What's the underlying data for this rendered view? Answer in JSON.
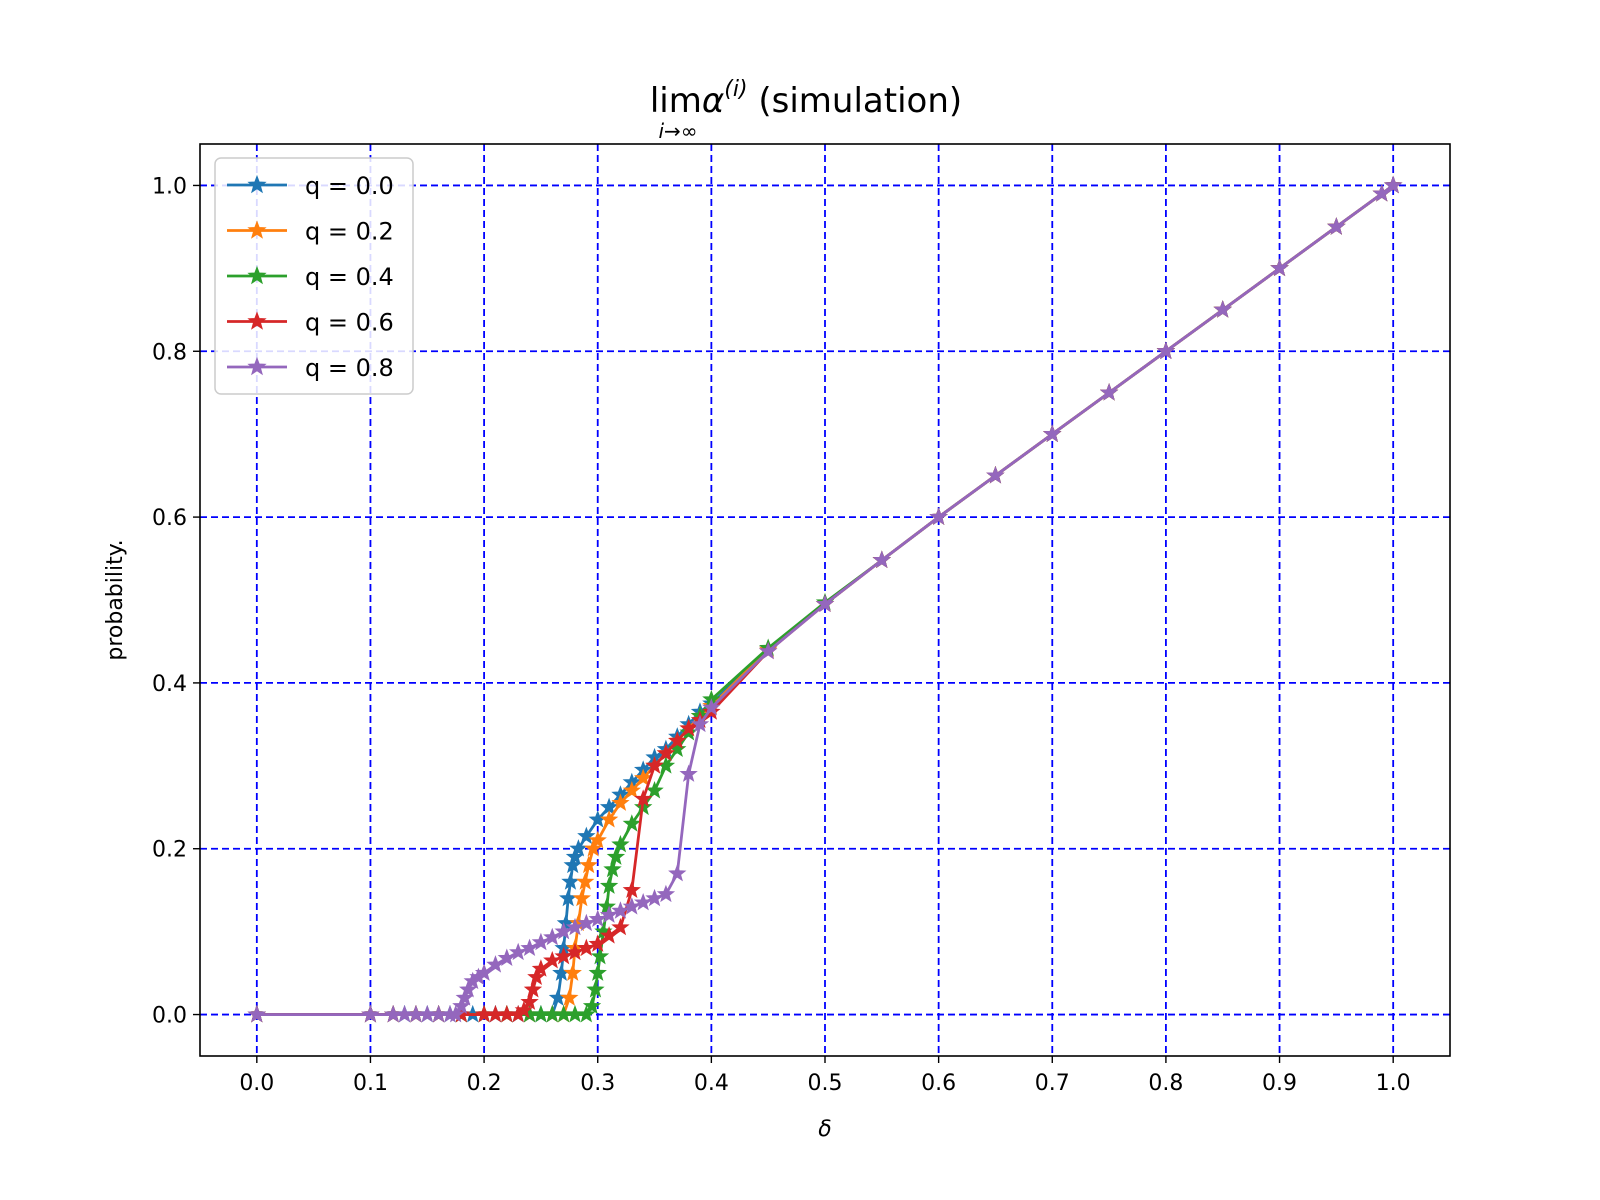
{
  "chart_data": {
    "type": "line",
    "title": {
      "prefix": "lim",
      "symbol": "α",
      "superscript": "(i)",
      "suffix": " (simulation)",
      "subscript": "i→∞"
    },
    "xlabel": "δ",
    "ylabel": "probability.",
    "xlim": [
      -0.05,
      1.05
    ],
    "ylim": [
      -0.05,
      1.05
    ],
    "xticks": [
      0.0,
      0.1,
      0.2,
      0.3,
      0.4,
      0.5,
      0.6,
      0.7,
      0.8,
      0.9,
      1.0
    ],
    "xtick_labels": [
      "0.0",
      "0.1",
      "0.2",
      "0.3",
      "0.4",
      "0.5",
      "0.6",
      "0.7",
      "0.8",
      "0.9",
      "1.0"
    ],
    "yticks": [
      0.0,
      0.2,
      0.4,
      0.6,
      0.8,
      1.0
    ],
    "ytick_labels": [
      "0.0",
      "0.2",
      "0.4",
      "0.6",
      "0.8",
      "1.0"
    ],
    "grid": true,
    "grid_color": "#0000ff",
    "legend_position": "upper-left",
    "marker": "star",
    "series": [
      {
        "name": "q = 0.0",
        "color": "#1f77b4",
        "points": [
          [
            0.0,
            0.0
          ],
          [
            0.1,
            0.0
          ],
          [
            0.12,
            0.0
          ],
          [
            0.13,
            0.0
          ],
          [
            0.14,
            0.0
          ],
          [
            0.15,
            0.0
          ],
          [
            0.16,
            0.0
          ],
          [
            0.17,
            0.0
          ],
          [
            0.18,
            0.0
          ],
          [
            0.19,
            0.0
          ],
          [
            0.2,
            0.0
          ],
          [
            0.21,
            0.0
          ],
          [
            0.22,
            0.0
          ],
          [
            0.23,
            0.0
          ],
          [
            0.24,
            0.0
          ],
          [
            0.25,
            0.0
          ],
          [
            0.26,
            0.0
          ],
          [
            0.265,
            0.02
          ],
          [
            0.268,
            0.05
          ],
          [
            0.27,
            0.08
          ],
          [
            0.272,
            0.11
          ],
          [
            0.274,
            0.14
          ],
          [
            0.276,
            0.16
          ],
          [
            0.278,
            0.18
          ],
          [
            0.28,
            0.19
          ],
          [
            0.283,
            0.2
          ],
          [
            0.29,
            0.215
          ],
          [
            0.3,
            0.235
          ],
          [
            0.31,
            0.25
          ],
          [
            0.32,
            0.265
          ],
          [
            0.33,
            0.28
          ],
          [
            0.34,
            0.295
          ],
          [
            0.35,
            0.31
          ],
          [
            0.36,
            0.32
          ],
          [
            0.37,
            0.335
          ],
          [
            0.38,
            0.35
          ],
          [
            0.39,
            0.365
          ],
          [
            0.4,
            0.375
          ],
          [
            0.45,
            0.44
          ],
          [
            0.5,
            0.495
          ],
          [
            0.55,
            0.548
          ],
          [
            0.6,
            0.6
          ],
          [
            0.65,
            0.65
          ],
          [
            0.7,
            0.7
          ],
          [
            0.75,
            0.75
          ],
          [
            0.8,
            0.8
          ],
          [
            0.85,
            0.85
          ],
          [
            0.9,
            0.9
          ],
          [
            0.95,
            0.95
          ],
          [
            0.99,
            0.99
          ],
          [
            1.0,
            1.0
          ]
        ]
      },
      {
        "name": "q = 0.2",
        "color": "#ff7f0e",
        "points": [
          [
            0.0,
            0.0
          ],
          [
            0.1,
            0.0
          ],
          [
            0.12,
            0.0
          ],
          [
            0.14,
            0.0
          ],
          [
            0.16,
            0.0
          ],
          [
            0.18,
            0.0
          ],
          [
            0.2,
            0.0
          ],
          [
            0.22,
            0.0
          ],
          [
            0.24,
            0.0
          ],
          [
            0.26,
            0.0
          ],
          [
            0.27,
            0.0
          ],
          [
            0.275,
            0.02
          ],
          [
            0.278,
            0.05
          ],
          [
            0.28,
            0.08
          ],
          [
            0.283,
            0.11
          ],
          [
            0.286,
            0.14
          ],
          [
            0.289,
            0.16
          ],
          [
            0.292,
            0.18
          ],
          [
            0.296,
            0.2
          ],
          [
            0.3,
            0.21
          ],
          [
            0.31,
            0.235
          ],
          [
            0.32,
            0.255
          ],
          [
            0.33,
            0.27
          ],
          [
            0.34,
            0.285
          ],
          [
            0.35,
            0.3
          ],
          [
            0.36,
            0.315
          ],
          [
            0.37,
            0.33
          ],
          [
            0.38,
            0.345
          ],
          [
            0.39,
            0.36
          ],
          [
            0.4,
            0.372
          ],
          [
            0.45,
            0.44
          ],
          [
            0.5,
            0.495
          ],
          [
            0.55,
            0.548
          ],
          [
            0.6,
            0.6
          ],
          [
            0.65,
            0.65
          ],
          [
            0.7,
            0.7
          ],
          [
            0.75,
            0.75
          ],
          [
            0.8,
            0.8
          ],
          [
            0.85,
            0.85
          ],
          [
            0.9,
            0.9
          ],
          [
            0.95,
            0.95
          ],
          [
            0.99,
            0.99
          ],
          [
            1.0,
            1.0
          ]
        ]
      },
      {
        "name": "q = 0.4",
        "color": "#2ca02c",
        "points": [
          [
            0.0,
            0.0
          ],
          [
            0.1,
            0.0
          ],
          [
            0.12,
            0.0
          ],
          [
            0.14,
            0.0
          ],
          [
            0.16,
            0.0
          ],
          [
            0.18,
            0.0
          ],
          [
            0.2,
            0.0
          ],
          [
            0.22,
            0.0
          ],
          [
            0.24,
            0.0
          ],
          [
            0.25,
            0.0
          ],
          [
            0.26,
            0.0
          ],
          [
            0.27,
            0.0
          ],
          [
            0.28,
            0.0
          ],
          [
            0.29,
            0.0
          ],
          [
            0.295,
            0.01
          ],
          [
            0.298,
            0.03
          ],
          [
            0.3,
            0.05
          ],
          [
            0.302,
            0.07
          ],
          [
            0.305,
            0.1
          ],
          [
            0.308,
            0.13
          ],
          [
            0.31,
            0.155
          ],
          [
            0.313,
            0.175
          ],
          [
            0.316,
            0.19
          ],
          [
            0.32,
            0.205
          ],
          [
            0.33,
            0.23
          ],
          [
            0.34,
            0.25
          ],
          [
            0.35,
            0.27
          ],
          [
            0.36,
            0.3
          ],
          [
            0.37,
            0.32
          ],
          [
            0.38,
            0.34
          ],
          [
            0.39,
            0.36
          ],
          [
            0.4,
            0.38
          ],
          [
            0.45,
            0.442
          ],
          [
            0.5,
            0.497
          ],
          [
            0.55,
            0.548
          ],
          [
            0.6,
            0.6
          ],
          [
            0.65,
            0.65
          ],
          [
            0.7,
            0.7
          ],
          [
            0.75,
            0.75
          ],
          [
            0.8,
            0.8
          ],
          [
            0.85,
            0.85
          ],
          [
            0.9,
            0.9
          ],
          [
            0.95,
            0.95
          ],
          [
            0.99,
            0.99
          ],
          [
            1.0,
            1.0
          ]
        ]
      },
      {
        "name": "q = 0.6",
        "color": "#d62728",
        "points": [
          [
            0.0,
            0.0
          ],
          [
            0.1,
            0.0
          ],
          [
            0.12,
            0.0
          ],
          [
            0.14,
            0.0
          ],
          [
            0.16,
            0.0
          ],
          [
            0.18,
            0.0
          ],
          [
            0.2,
            0.0
          ],
          [
            0.21,
            0.0
          ],
          [
            0.22,
            0.0
          ],
          [
            0.23,
            0.0
          ],
          [
            0.235,
            0.005
          ],
          [
            0.24,
            0.015
          ],
          [
            0.243,
            0.03
          ],
          [
            0.246,
            0.045
          ],
          [
            0.25,
            0.055
          ],
          [
            0.26,
            0.065
          ],
          [
            0.27,
            0.07
          ],
          [
            0.28,
            0.075
          ],
          [
            0.29,
            0.08
          ],
          [
            0.3,
            0.085
          ],
          [
            0.31,
            0.095
          ],
          [
            0.32,
            0.105
          ],
          [
            0.33,
            0.15
          ],
          [
            0.34,
            0.26
          ],
          [
            0.35,
            0.3
          ],
          [
            0.36,
            0.315
          ],
          [
            0.37,
            0.33
          ],
          [
            0.38,
            0.345
          ],
          [
            0.39,
            0.355
          ],
          [
            0.4,
            0.365
          ],
          [
            0.45,
            0.438
          ],
          [
            0.5,
            0.495
          ],
          [
            0.55,
            0.548
          ],
          [
            0.6,
            0.6
          ],
          [
            0.65,
            0.65
          ],
          [
            0.7,
            0.7
          ],
          [
            0.75,
            0.75
          ],
          [
            0.8,
            0.8
          ],
          [
            0.85,
            0.85
          ],
          [
            0.9,
            0.9
          ],
          [
            0.95,
            0.95
          ],
          [
            0.99,
            0.99
          ],
          [
            1.0,
            1.0
          ]
        ]
      },
      {
        "name": "q = 0.8",
        "color": "#9467bd",
        "points": [
          [
            0.0,
            0.0
          ],
          [
            0.1,
            0.0
          ],
          [
            0.12,
            0.0
          ],
          [
            0.13,
            0.0
          ],
          [
            0.14,
            0.0
          ],
          [
            0.15,
            0.0
          ],
          [
            0.16,
            0.0
          ],
          [
            0.17,
            0.0
          ],
          [
            0.175,
            0.0
          ],
          [
            0.18,
            0.01
          ],
          [
            0.183,
            0.02
          ],
          [
            0.186,
            0.03
          ],
          [
            0.19,
            0.04
          ],
          [
            0.195,
            0.045
          ],
          [
            0.2,
            0.05
          ],
          [
            0.21,
            0.06
          ],
          [
            0.22,
            0.068
          ],
          [
            0.23,
            0.075
          ],
          [
            0.24,
            0.08
          ],
          [
            0.25,
            0.087
          ],
          [
            0.26,
            0.093
          ],
          [
            0.27,
            0.1
          ],
          [
            0.28,
            0.105
          ],
          [
            0.29,
            0.11
          ],
          [
            0.3,
            0.115
          ],
          [
            0.31,
            0.12
          ],
          [
            0.32,
            0.125
          ],
          [
            0.33,
            0.13
          ],
          [
            0.34,
            0.135
          ],
          [
            0.35,
            0.14
          ],
          [
            0.36,
            0.145
          ],
          [
            0.37,
            0.17
          ],
          [
            0.38,
            0.29
          ],
          [
            0.39,
            0.35
          ],
          [
            0.4,
            0.37
          ],
          [
            0.45,
            0.438
          ],
          [
            0.5,
            0.495
          ],
          [
            0.55,
            0.548
          ],
          [
            0.6,
            0.6
          ],
          [
            0.65,
            0.65
          ],
          [
            0.7,
            0.7
          ],
          [
            0.75,
            0.75
          ],
          [
            0.8,
            0.8
          ],
          [
            0.85,
            0.85
          ],
          [
            0.9,
            0.9
          ],
          [
            0.95,
            0.95
          ],
          [
            0.99,
            0.99
          ],
          [
            1.0,
            1.0
          ]
        ]
      }
    ]
  }
}
